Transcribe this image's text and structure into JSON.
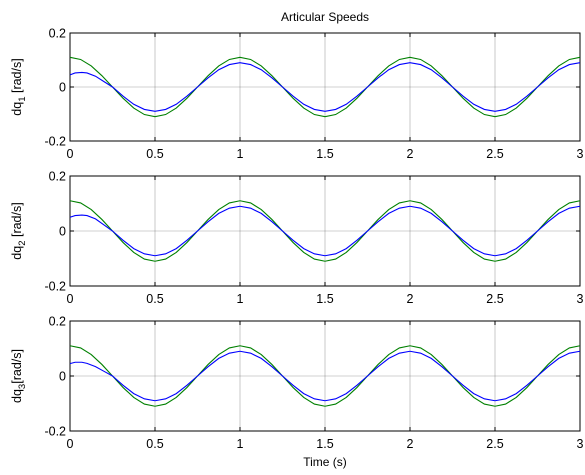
{
  "chart_data": [
    {
      "type": "line",
      "title": "Articular Speeds",
      "ylabel_main": "dq",
      "ylabel_sub": "1",
      "ylabel_unit": " [rad/s]",
      "xlim": [
        0,
        3
      ],
      "ylim": [
        -0.2,
        0.2
      ],
      "xticks": [
        0,
        0.5,
        1,
        1.5,
        2,
        2.5,
        3
      ],
      "xtick_labels": [
        "0",
        "0.5",
        "1",
        "1.5",
        "2",
        "2.5",
        "3"
      ],
      "yticks": [
        -0.2,
        0,
        0.2
      ],
      "ytick_labels": [
        "-0.2",
        "0",
        "0.2"
      ],
      "grid": true,
      "series": [
        {
          "color": "#008000",
          "x": [
            0,
            0.0625,
            0.125,
            0.1875,
            0.25,
            0.3125,
            0.375,
            0.4375,
            0.5,
            0.5625,
            0.625,
            0.6875,
            0.75,
            0.8125,
            0.875,
            0.9375,
            1,
            1.0625,
            1.125,
            1.1875,
            1.25,
            1.3125,
            1.375,
            1.4375,
            1.5,
            1.5625,
            1.625,
            1.6875,
            1.75,
            1.8125,
            1.875,
            1.9375,
            2,
            2.0625,
            2.125,
            2.1875,
            2.25,
            2.3125,
            2.375,
            2.4375,
            2.5,
            2.5625,
            2.625,
            2.6875,
            2.75,
            2.8125,
            2.875,
            2.9375,
            3
          ],
          "y": [
            0.11,
            0.102,
            0.078,
            0.042,
            0,
            -0.042,
            -0.078,
            -0.102,
            -0.11,
            -0.102,
            -0.078,
            -0.042,
            0,
            0.042,
            0.078,
            0.102,
            0.11,
            0.102,
            0.078,
            0.042,
            0,
            -0.042,
            -0.078,
            -0.102,
            -0.11,
            -0.102,
            -0.078,
            -0.042,
            0,
            0.042,
            0.078,
            0.102,
            0.11,
            0.102,
            0.078,
            0.042,
            0,
            -0.042,
            -0.078,
            -0.102,
            -0.11,
            -0.102,
            -0.078,
            -0.042,
            0,
            0.042,
            0.078,
            0.102,
            0.11
          ]
        },
        {
          "color": "#0000ff",
          "x": [
            0,
            0.03,
            0.07,
            0.1,
            0.15,
            0.2,
            0.25,
            0.3125,
            0.375,
            0.4375,
            0.5,
            0.5625,
            0.625,
            0.6875,
            0.75,
            0.8125,
            0.875,
            0.9375,
            1,
            1.0625,
            1.125,
            1.1875,
            1.25,
            1.3125,
            1.375,
            1.4375,
            1.5,
            1.5625,
            1.625,
            1.6875,
            1.75,
            1.8125,
            1.875,
            1.9375,
            2,
            2.0625,
            2.125,
            2.1875,
            2.25,
            2.3125,
            2.375,
            2.4375,
            2.5,
            2.5625,
            2.625,
            2.6875,
            2.75,
            2.8125,
            2.875,
            2.9375,
            3
          ],
          "y": [
            0.045,
            0.052,
            0.054,
            0.052,
            0.04,
            0.02,
            0,
            -0.034,
            -0.064,
            -0.083,
            -0.09,
            -0.083,
            -0.064,
            -0.034,
            0,
            0.034,
            0.064,
            0.083,
            0.09,
            0.083,
            0.064,
            0.034,
            0,
            -0.034,
            -0.064,
            -0.083,
            -0.09,
            -0.083,
            -0.064,
            -0.034,
            0,
            0.034,
            0.064,
            0.083,
            0.09,
            0.083,
            0.064,
            0.034,
            0,
            -0.034,
            -0.064,
            -0.083,
            -0.09,
            -0.083,
            -0.064,
            -0.034,
            0,
            0.034,
            0.064,
            0.083,
            0.09
          ]
        }
      ]
    },
    {
      "type": "line",
      "title": "",
      "ylabel_main": "dq",
      "ylabel_sub": "2",
      "ylabel_unit": " [rad/s]",
      "xlim": [
        0,
        3
      ],
      "ylim": [
        -0.2,
        0.2
      ],
      "xticks": [
        0,
        0.5,
        1,
        1.5,
        2,
        2.5,
        3
      ],
      "xtick_labels": [
        "0",
        "0.5",
        "1",
        "1.5",
        "2",
        "2.5",
        "3"
      ],
      "yticks": [
        -0.2,
        0,
        0.2
      ],
      "ytick_labels": [
        "-0.2",
        "0",
        "0.2"
      ],
      "grid": true,
      "series": [
        {
          "color": "#008000",
          "x": [
            0,
            0.0625,
            0.125,
            0.1875,
            0.25,
            0.3125,
            0.375,
            0.4375,
            0.5,
            0.5625,
            0.625,
            0.6875,
            0.75,
            0.8125,
            0.875,
            0.9375,
            1,
            1.0625,
            1.125,
            1.1875,
            1.25,
            1.3125,
            1.375,
            1.4375,
            1.5,
            1.5625,
            1.625,
            1.6875,
            1.75,
            1.8125,
            1.875,
            1.9375,
            2,
            2.0625,
            2.125,
            2.1875,
            2.25,
            2.3125,
            2.375,
            2.4375,
            2.5,
            2.5625,
            2.625,
            2.6875,
            2.75,
            2.8125,
            2.875,
            2.9375,
            3
          ],
          "y": [
            0.11,
            0.102,
            0.078,
            0.042,
            0,
            -0.042,
            -0.078,
            -0.102,
            -0.11,
            -0.102,
            -0.078,
            -0.042,
            0,
            0.042,
            0.078,
            0.102,
            0.11,
            0.102,
            0.078,
            0.042,
            0,
            -0.042,
            -0.078,
            -0.102,
            -0.11,
            -0.102,
            -0.078,
            -0.042,
            0,
            0.042,
            0.078,
            0.102,
            0.11,
            0.102,
            0.078,
            0.042,
            0,
            -0.042,
            -0.078,
            -0.102,
            -0.11,
            -0.102,
            -0.078,
            -0.042,
            0,
            0.042,
            0.078,
            0.102,
            0.11
          ]
        },
        {
          "color": "#0000ff",
          "x": [
            0,
            0.03,
            0.07,
            0.1,
            0.15,
            0.2,
            0.25,
            0.3125,
            0.375,
            0.4375,
            0.5,
            0.5625,
            0.625,
            0.6875,
            0.75,
            0.8125,
            0.875,
            0.9375,
            1,
            1.0625,
            1.125,
            1.1875,
            1.25,
            1.3125,
            1.375,
            1.4375,
            1.5,
            1.5625,
            1.625,
            1.6875,
            1.75,
            1.8125,
            1.875,
            1.9375,
            2,
            2.0625,
            2.125,
            2.1875,
            2.25,
            2.3125,
            2.375,
            2.4375,
            2.5,
            2.5625,
            2.625,
            2.6875,
            2.75,
            2.8125,
            2.875,
            2.9375,
            3
          ],
          "y": [
            0.05,
            0.056,
            0.058,
            0.056,
            0.044,
            0.022,
            0,
            -0.034,
            -0.064,
            -0.083,
            -0.09,
            -0.083,
            -0.064,
            -0.034,
            0,
            0.034,
            0.064,
            0.083,
            0.09,
            0.083,
            0.064,
            0.034,
            0,
            -0.034,
            -0.064,
            -0.083,
            -0.09,
            -0.083,
            -0.064,
            -0.034,
            0,
            0.034,
            0.064,
            0.083,
            0.09,
            0.083,
            0.064,
            0.034,
            0,
            -0.034,
            -0.064,
            -0.083,
            -0.09,
            -0.083,
            -0.064,
            -0.034,
            0,
            0.034,
            0.064,
            0.083,
            0.09
          ]
        }
      ]
    },
    {
      "type": "line",
      "title": "",
      "ylabel_main": "dq",
      "ylabel_sub": "3",
      "ylabel_unit": "[rad/s]",
      "xlabel": "Time (s)",
      "xlim": [
        0,
        3
      ],
      "ylim": [
        -0.2,
        0.2
      ],
      "xticks": [
        0,
        0.5,
        1,
        1.5,
        2,
        2.5,
        3
      ],
      "xtick_labels": [
        "0",
        "0.5",
        "1",
        "1.5",
        "2",
        "2.5",
        "3"
      ],
      "yticks": [
        -0.2,
        0,
        0.2
      ],
      "ytick_labels": [
        "-0.2",
        "0",
        "0.2"
      ],
      "grid": true,
      "series": [
        {
          "color": "#008000",
          "x": [
            0,
            0.0625,
            0.125,
            0.1875,
            0.25,
            0.3125,
            0.375,
            0.4375,
            0.5,
            0.5625,
            0.625,
            0.6875,
            0.75,
            0.8125,
            0.875,
            0.9375,
            1,
            1.0625,
            1.125,
            1.1875,
            1.25,
            1.3125,
            1.375,
            1.4375,
            1.5,
            1.5625,
            1.625,
            1.6875,
            1.75,
            1.8125,
            1.875,
            1.9375,
            2,
            2.0625,
            2.125,
            2.1875,
            2.25,
            2.3125,
            2.375,
            2.4375,
            2.5,
            2.5625,
            2.625,
            2.6875,
            2.75,
            2.8125,
            2.875,
            2.9375,
            3
          ],
          "y": [
            0.11,
            0.102,
            0.078,
            0.042,
            0,
            -0.042,
            -0.078,
            -0.102,
            -0.11,
            -0.102,
            -0.078,
            -0.042,
            0,
            0.042,
            0.078,
            0.102,
            0.11,
            0.102,
            0.078,
            0.042,
            0,
            -0.042,
            -0.078,
            -0.102,
            -0.11,
            -0.102,
            -0.078,
            -0.042,
            0,
            0.042,
            0.078,
            0.102,
            0.11,
            0.102,
            0.078,
            0.042,
            0,
            -0.042,
            -0.078,
            -0.102,
            -0.11,
            -0.102,
            -0.078,
            -0.042,
            0,
            0.042,
            0.078,
            0.102,
            0.11
          ]
        },
        {
          "color": "#0000ff",
          "x": [
            0,
            0.03,
            0.07,
            0.1,
            0.15,
            0.2,
            0.25,
            0.3125,
            0.375,
            0.4375,
            0.5,
            0.5625,
            0.625,
            0.6875,
            0.75,
            0.8125,
            0.875,
            0.9375,
            1,
            1.0625,
            1.125,
            1.1875,
            1.25,
            1.3125,
            1.375,
            1.4375,
            1.5,
            1.5625,
            1.625,
            1.6875,
            1.75,
            1.8125,
            1.875,
            1.9375,
            2,
            2.0625,
            2.125,
            2.1875,
            2.25,
            2.3125,
            2.375,
            2.4375,
            2.5,
            2.5625,
            2.625,
            2.6875,
            2.75,
            2.8125,
            2.875,
            2.9375,
            3
          ],
          "y": [
            0.045,
            0.05,
            0.05,
            0.046,
            0.034,
            0.017,
            0,
            -0.034,
            -0.064,
            -0.083,
            -0.09,
            -0.083,
            -0.064,
            -0.034,
            0,
            0.034,
            0.064,
            0.083,
            0.09,
            0.083,
            0.064,
            0.034,
            0,
            -0.034,
            -0.064,
            -0.083,
            -0.09,
            -0.083,
            -0.064,
            -0.034,
            0,
            0.034,
            0.064,
            0.083,
            0.09,
            0.083,
            0.064,
            0.034,
            0,
            -0.034,
            -0.064,
            -0.083,
            -0.09,
            -0.083,
            -0.064,
            -0.034,
            0,
            0.034,
            0.064,
            0.083,
            0.09
          ]
        }
      ]
    }
  ]
}
